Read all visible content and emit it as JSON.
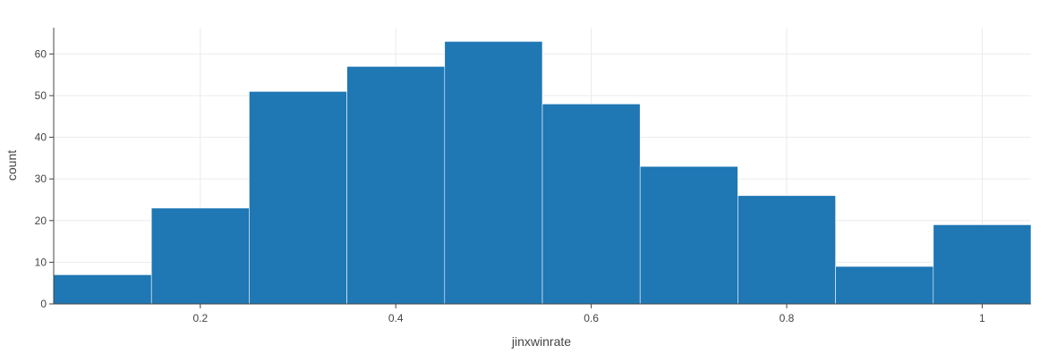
{
  "chart_data": {
    "type": "bar",
    "bin_edges": [
      0.05,
      0.15,
      0.25,
      0.35,
      0.45,
      0.55,
      0.65,
      0.75,
      0.85,
      0.95,
      1.05
    ],
    "values": [
      7,
      23,
      51,
      57,
      63,
      48,
      33,
      26,
      9,
      19
    ],
    "xlabel": "jinxwinrate",
    "ylabel": "count",
    "xlim": [
      0.05,
      1.05
    ],
    "ylim": [
      0,
      66.3
    ],
    "x_ticks": [
      {
        "value": 0.2,
        "label": "0.2"
      },
      {
        "value": 0.4,
        "label": "0.4"
      },
      {
        "value": 0.6,
        "label": "0.6"
      },
      {
        "value": 0.8,
        "label": "0.8"
      },
      {
        "value": 1.0,
        "label": "1"
      }
    ],
    "y_ticks": [
      {
        "value": 0,
        "label": "0"
      },
      {
        "value": 10,
        "label": "10"
      },
      {
        "value": 20,
        "label": "20"
      },
      {
        "value": 30,
        "label": "30"
      },
      {
        "value": 40,
        "label": "40"
      },
      {
        "value": 50,
        "label": "50"
      },
      {
        "value": 60,
        "label": "60"
      }
    ],
    "grid": true,
    "bar_color": "#1f77b4",
    "bar_edge_color": "#ffffff",
    "grid_color": "#ebebeb",
    "axis_color": "#444444"
  }
}
